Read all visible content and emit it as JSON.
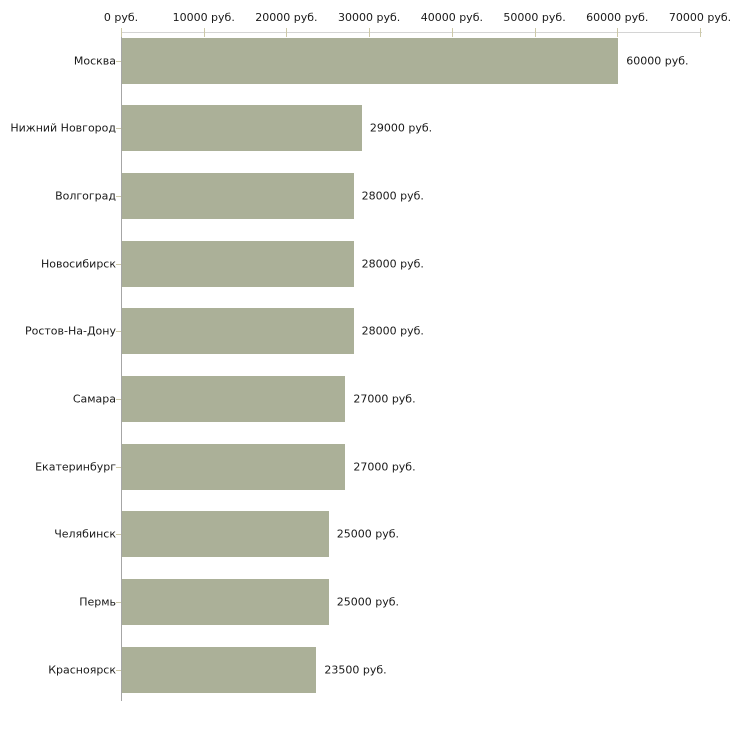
{
  "chart_data": {
    "type": "bar",
    "orientation": "horizontal",
    "title": "",
    "xlabel": "",
    "ylabel": "",
    "grid": false,
    "legend": false,
    "categories": [
      "Москва",
      "Нижний Новгород",
      "Волгоград",
      "Новосибирск",
      "Ростов-На-Дону",
      "Самара",
      "Екатеринбург",
      "Челябинск",
      "Пермь",
      "Красноярск"
    ],
    "values": [
      60000,
      29000,
      28000,
      28000,
      28000,
      27000,
      27000,
      25000,
      25000,
      23500
    ],
    "value_labels": [
      "60000 руб.",
      "29000 руб.",
      "28000 руб.",
      "28000 руб.",
      "28000 руб.",
      "27000 руб.",
      "27000 руб.",
      "25000 руб.",
      "25000 руб.",
      "23500 руб."
    ],
    "x_axis": {
      "position": "top",
      "min": 0,
      "max": 70000,
      "ticks": [
        0,
        10000,
        20000,
        30000,
        40000,
        50000,
        60000,
        70000
      ],
      "tick_labels": [
        "0 руб.",
        "10000 руб.",
        "20000 руб.",
        "30000 руб.",
        "40000 руб.",
        "50000 руб.",
        "60000 руб.",
        "70000 руб."
      ]
    },
    "colors": {
      "bar": "#abb098",
      "axis_line": "#a6a6a6",
      "grid_line": "#d4d4d4",
      "tick": "#cdc9a8",
      "text": "#1a1a1a",
      "background": "#ffffff"
    }
  }
}
